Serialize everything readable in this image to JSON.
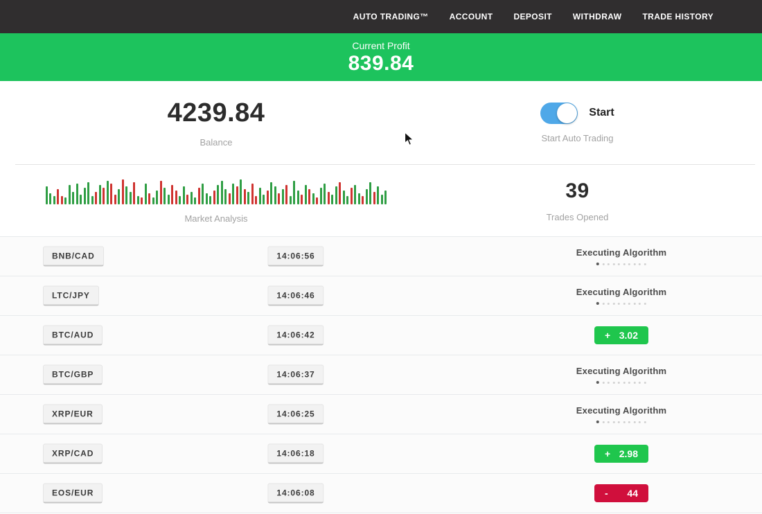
{
  "nav": {
    "items": [
      {
        "label": "AUTO TRADING™"
      },
      {
        "label": "ACCOUNT"
      },
      {
        "label": "DEPOSIT"
      },
      {
        "label": "WITHDRAW"
      },
      {
        "label": "TRADE HISTORY"
      }
    ]
  },
  "profit_banner": {
    "label": "Current Profit",
    "value": "839.84",
    "bg_color": "#1dc35d"
  },
  "stats": {
    "balance": {
      "value": "4239.84",
      "label": "Balance"
    },
    "auto_trading": {
      "toggle_label": "Start",
      "label": "Start Auto Trading",
      "toggle_on": true,
      "toggle_color": "#4fa8e8"
    },
    "market": {
      "label": "Market Analysis",
      "bars": [
        "g26",
        "g16",
        "g12",
        "r22",
        "r12",
        "g10",
        "g28",
        "g18",
        "g30",
        "g14",
        "g24",
        "g32",
        "g12",
        "r18",
        "g28",
        "r24",
        "g34",
        "r30",
        "r14",
        "g22",
        "r36",
        "g26",
        "g18",
        "r32",
        "g12",
        "r10",
        "g30",
        "r16",
        "g10",
        "g20",
        "r34",
        "g24",
        "g14",
        "r28",
        "r20",
        "g12",
        "g26",
        "r14",
        "g18",
        "g10",
        "r24",
        "g30",
        "g16",
        "g12",
        "r20",
        "g28",
        "g34",
        "g22",
        "r16",
        "g30",
        "r26",
        "g36",
        "r22",
        "g18",
        "r30",
        "r12",
        "g24",
        "g14",
        "r20",
        "g32",
        "g26",
        "r16",
        "g22",
        "r28",
        "g12",
        "g34",
        "g20",
        "r14",
        "g28",
        "r22",
        "g16",
        "r10",
        "g24",
        "g30",
        "r18",
        "g14",
        "g26",
        "r32",
        "g20",
        "g12",
        "r24",
        "g28",
        "g16",
        "r12",
        "g22",
        "g32",
        "r18",
        "g26",
        "g14",
        "g20"
      ]
    },
    "trades_opened": {
      "value": "39",
      "label": "Trades Opened"
    }
  },
  "executing_dots": 10,
  "trades": [
    {
      "pair": "BNB/CAD",
      "time": "14:06:56",
      "status": "executing",
      "status_label": "Executing Algorithm"
    },
    {
      "pair": "LTC/JPY",
      "time": "14:06:46",
      "status": "executing",
      "status_label": "Executing Algorithm"
    },
    {
      "pair": "BTC/AUD",
      "time": "14:06:42",
      "status": "profit",
      "sign": "+",
      "amount": "3.02"
    },
    {
      "pair": "BTC/GBP",
      "time": "14:06:37",
      "status": "executing",
      "status_label": "Executing Algorithm"
    },
    {
      "pair": "XRP/EUR",
      "time": "14:06:25",
      "status": "executing",
      "status_label": "Executing Algorithm"
    },
    {
      "pair": "XRP/CAD",
      "time": "14:06:18",
      "status": "profit",
      "sign": "+",
      "amount": "2.98"
    },
    {
      "pair": "EOS/EUR",
      "time": "14:06:08",
      "status": "loss",
      "sign": "-",
      "amount": "44"
    }
  ],
  "colors": {
    "nav_bg": "#302e2f",
    "banner_green": "#1dc35d",
    "profit_badge_green": "#1fc64d",
    "loss_badge_red": "#d00f3c",
    "toggle_blue": "#4fa8e8",
    "bar_green": "#2f9e44",
    "bar_red": "#cf3330"
  }
}
